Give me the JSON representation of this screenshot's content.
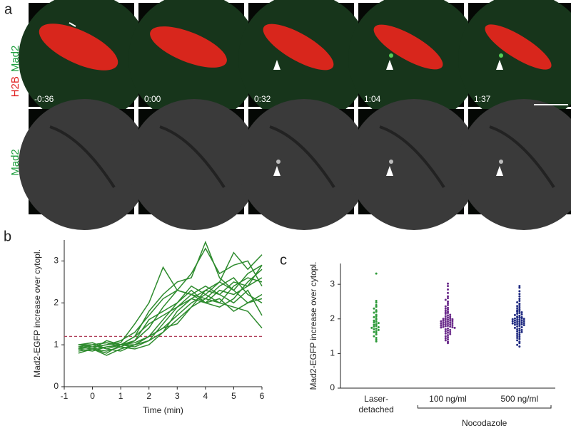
{
  "panel_a": {
    "label": "a",
    "row1_labels": [
      "H2B",
      "Mad2"
    ],
    "row2_label": "Mad2",
    "timestamps": [
      "-0:36",
      "0:00",
      "0:32",
      "1:04",
      "1:37"
    ]
  },
  "chart_data": [
    {
      "type": "line",
      "panel_label": "b",
      "x_label": "Time (min)",
      "y_label": "Mad2-EGFP increase over cytopl.",
      "color": "#2e8b2e",
      "xlim": [
        -1,
        6
      ],
      "ylim": [
        0,
        3.5
      ],
      "xticks": [
        -1,
        0,
        1,
        2,
        3,
        4,
        5,
        6
      ],
      "yticks": [
        0,
        1,
        2,
        3
      ],
      "hlines": [
        {
          "value": 1.2,
          "color": "#b0405a",
          "style": "dashed"
        }
      ],
      "x": [
        -0.5,
        0,
        0.5,
        1,
        1.5,
        2,
        2.5,
        3,
        3.5,
        4,
        4.5,
        5,
        5.5,
        6
      ],
      "series": [
        {
          "values": [
            0.9,
            0.95,
            1.0,
            1.05,
            1.5,
            2.0,
            2.85,
            2.3,
            2.2,
            2.1,
            2.0,
            1.9,
            1.8,
            1.4
          ]
        },
        {
          "values": [
            0.85,
            0.9,
            0.8,
            1.0,
            1.2,
            1.8,
            2.2,
            2.5,
            2.6,
            3.45,
            2.6,
            2.3,
            2.0,
            2.1
          ]
        },
        {
          "values": [
            1.0,
            1.0,
            1.05,
            0.95,
            1.1,
            1.4,
            1.9,
            2.3,
            2.7,
            3.3,
            2.7,
            2.9,
            3.0,
            2.4
          ]
        },
        {
          "values": [
            0.95,
            0.9,
            1.1,
            1.0,
            1.0,
            1.2,
            1.6,
            2.0,
            2.4,
            2.2,
            2.5,
            3.2,
            2.8,
            3.15
          ]
        },
        {
          "values": [
            0.9,
            1.0,
            0.9,
            0.85,
            1.0,
            1.1,
            1.5,
            1.9,
            2.1,
            2.0,
            2.3,
            2.2,
            2.4,
            2.9
          ]
        },
        {
          "values": [
            1.0,
            0.95,
            1.0,
            1.1,
            1.3,
            1.7,
            2.1,
            2.3,
            2.2,
            2.4,
            2.2,
            2.0,
            2.3,
            1.7
          ]
        },
        {
          "values": [
            0.8,
            0.9,
            0.85,
            0.95,
            0.9,
            1.0,
            1.3,
            1.6,
            1.9,
            2.1,
            2.4,
            2.6,
            2.2,
            2.0
          ]
        },
        {
          "values": [
            0.95,
            1.0,
            1.05,
            1.0,
            1.1,
            1.6,
            1.8,
            2.0,
            2.3,
            2.0,
            1.9,
            2.1,
            2.5,
            2.8
          ]
        },
        {
          "values": [
            0.9,
            0.85,
            0.95,
            1.0,
            1.05,
            1.2,
            1.4,
            1.7,
            2.0,
            2.2,
            2.0,
            2.4,
            2.6,
            2.5
          ]
        },
        {
          "values": [
            1.0,
            1.05,
            0.9,
            1.0,
            1.2,
            1.5,
            1.7,
            1.9,
            2.2,
            2.0,
            2.1,
            1.8,
            2.0,
            2.2
          ]
        },
        {
          "values": [
            null,
            0.9,
            0.95,
            1.0,
            0.95,
            1.1,
            1.3,
            1.8,
            2.1,
            2.3,
            2.5,
            2.3,
            2.7,
            2.9
          ]
        },
        {
          "values": [
            0.95,
            0.9,
            0.75,
            0.9,
            1.0,
            1.2,
            1.4,
            1.5,
            1.9,
            2.3,
            2.2,
            2.5,
            2.4,
            2.6
          ]
        }
      ]
    },
    {
      "type": "strip",
      "panel_label": "c",
      "y_label": "Mad2-EGFP increase over cytopl.",
      "categories": [
        "Laser-\ndetached",
        "100 ng/ml",
        "500 ng/ml"
      ],
      "group_label": "Nocodazole",
      "ylim": [
        0,
        3.6
      ],
      "yticks": [
        0,
        1,
        2,
        3
      ],
      "series": [
        {
          "color": "#2e9a3a",
          "values": [
            3.31,
            2.52,
            2.47,
            2.4,
            2.35,
            2.3,
            2.25,
            2.21,
            2.18,
            2.12,
            2.08,
            2.05,
            2.02,
            1.98,
            1.95,
            1.92,
            1.9,
            1.88,
            1.85,
            1.83,
            1.8,
            1.78,
            1.76,
            1.74,
            1.72,
            1.7,
            1.68,
            1.65,
            1.62,
            1.6,
            1.55,
            1.5,
            1.45,
            1.4,
            1.35
          ]
        },
        {
          "color": "#6a2a8a",
          "values": [
            3.02,
            2.95,
            2.85,
            2.75,
            2.65,
            2.6,
            2.55,
            2.5,
            2.45,
            2.4,
            2.36,
            2.32,
            2.3,
            2.27,
            2.24,
            2.21,
            2.19,
            2.17,
            2.15,
            2.12,
            2.1,
            2.08,
            2.06,
            2.04,
            2.02,
            2.01,
            2.0,
            1.99,
            1.98,
            1.97,
            1.96,
            1.95,
            1.94,
            1.93,
            1.92,
            1.91,
            1.9,
            1.89,
            1.88,
            1.87,
            1.86,
            1.85,
            1.84,
            1.83,
            1.82,
            1.81,
            1.8,
            1.79,
            1.78,
            1.77,
            1.76,
            1.75,
            1.74,
            1.72,
            1.7,
            1.68,
            1.66,
            1.64,
            1.62,
            1.6,
            1.58,
            1.56,
            1.53,
            1.5,
            1.47,
            1.44,
            1.41,
            1.38,
            1.34,
            1.3
          ]
        },
        {
          "color": "#1f2a80",
          "values": [
            2.95,
            2.9,
            2.8,
            2.72,
            2.65,
            2.58,
            2.52,
            2.48,
            2.44,
            2.4,
            2.37,
            2.34,
            2.31,
            2.28,
            2.25,
            2.23,
            2.21,
            2.19,
            2.17,
            2.15,
            2.13,
            2.11,
            2.09,
            2.07,
            2.05,
            2.04,
            2.03,
            2.02,
            2.01,
            2.0,
            1.99,
            1.98,
            1.97,
            1.96,
            1.95,
            1.94,
            1.93,
            1.92,
            1.91,
            1.9,
            1.89,
            1.88,
            1.87,
            1.86,
            1.85,
            1.84,
            1.83,
            1.82,
            1.8,
            1.78,
            1.76,
            1.74,
            1.72,
            1.7,
            1.68,
            1.66,
            1.64,
            1.62,
            1.6,
            1.57,
            1.54,
            1.51,
            1.48,
            1.45,
            1.42,
            1.38,
            1.34,
            1.3,
            1.25,
            1.2
          ]
        }
      ]
    }
  ]
}
